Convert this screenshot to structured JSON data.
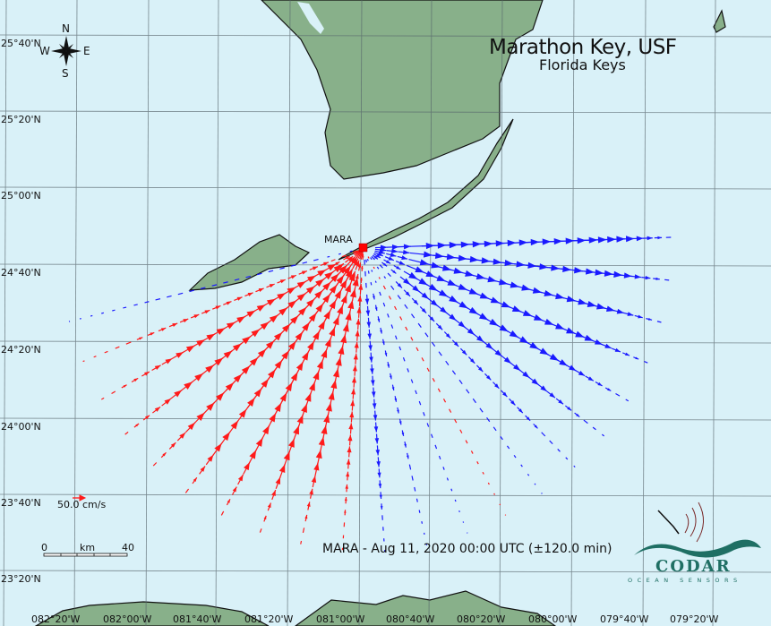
{
  "title": "Marathon Key, USF",
  "subtitle": "Florida Keys",
  "site": {
    "code": "MARA",
    "lon": -81.08,
    "lat": 24.71,
    "color": "#ff0000"
  },
  "timestamp_label": "MARA - Aug 11, 2020 00:00 UTC (±120.0 min)",
  "compass": {
    "n": "N",
    "s": "S",
    "e": "E",
    "w": "W"
  },
  "legend": {
    "speed_label": "50.0 cm/s",
    "speed_value": 50.0,
    "scale_start": "0",
    "scale_unit": "km",
    "scale_end": "40"
  },
  "lat_labels": [
    "25°40'N",
    "25°20'N",
    "25°00'N",
    "24°40'N",
    "24°20'N",
    "24°00'N",
    "23°40'N",
    "23°20'N"
  ],
  "lon_labels": [
    "082°20'W",
    "082°00'W",
    "081°40'W",
    "081°20'W",
    "081°00'W",
    "080°40'W",
    "080°20'W",
    "080°00'W",
    "079°40'W",
    "079°20'W"
  ],
  "colors": {
    "water": "#d9f1f8",
    "land": "#88b08a",
    "toward": "#ff1a1a",
    "away": "#1a1aff",
    "grid": "#55636a"
  },
  "logo": {
    "name": "CODAR",
    "tagline": "OCEAN SENSORS"
  },
  "radials": [
    {
      "bearing": 88,
      "v": 50
    },
    {
      "bearing": 96,
      "v": 46
    },
    {
      "bearing": 104,
      "v": 42
    },
    {
      "bearing": 112,
      "v": 38
    },
    {
      "bearing": 120,
      "v": 32
    },
    {
      "bearing": 128,
      "v": 26
    },
    {
      "bearing": 136,
      "v": 18
    },
    {
      "bearing": 144,
      "v": 10
    },
    {
      "bearing": 152,
      "v": -8
    },
    {
      "bearing": 160,
      "v": 8
    },
    {
      "bearing": 168,
      "v": 12
    },
    {
      "bearing": 176,
      "v": 20
    },
    {
      "bearing": 184,
      "v": -22
    },
    {
      "bearing": 192,
      "v": -34
    },
    {
      "bearing": 200,
      "v": -42
    },
    {
      "bearing": 208,
      "v": -46
    },
    {
      "bearing": 216,
      "v": -50
    },
    {
      "bearing": 224,
      "v": -46
    },
    {
      "bearing": 232,
      "v": -40
    },
    {
      "bearing": 240,
      "v": -30
    },
    {
      "bearing": 248,
      "v": -18
    },
    {
      "bearing": 256,
      "v": 10
    }
  ]
}
